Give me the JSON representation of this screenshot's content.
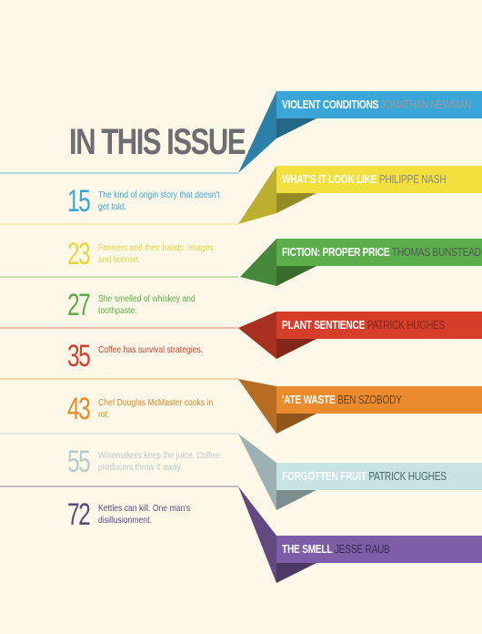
{
  "title": "IN THIS ISSUE",
  "entries": [
    {
      "num": "15",
      "desc": "The kind of origin story that doesn't get told.",
      "color": "#3aa6d8"
    },
    {
      "num": "23",
      "desc": "Farmers and their hands. Images and license.",
      "color": "#e8d63a"
    },
    {
      "num": "27",
      "desc": "She smelled of whiskey and toothpaste.",
      "color": "#5aaf4a"
    },
    {
      "num": "35",
      "desc": "Coffee has survival strategies.",
      "color": "#d73e2a"
    },
    {
      "num": "43",
      "desc": "Chef Douglas McMaster cooks in rot.",
      "color": "#e98a2c"
    },
    {
      "num": "55",
      "desc": "Winemakers keep the juice. Coffee producers throw it away.",
      "color": "#b9cbcc"
    },
    {
      "num": "72",
      "desc": "Kettles can kill. One man's disillusionment.",
      "color": "#5e4782"
    }
  ],
  "ribbons": [
    {
      "title": "VIOLENT CONDITIONS",
      "author": "JONATHAN NEWMAN",
      "color": "#3aa6d8",
      "author_color": "#9a9a9a"
    },
    {
      "title": "WHAT'S IT LOOK LIKE",
      "author": "PHILIPPE NASH",
      "color": "#f1e03d",
      "author_color": "#8a8a8a"
    },
    {
      "title": "FICTION: PROPER PRICE",
      "author": "THOMAS BUNSTEAD",
      "color": "#5aaf4a",
      "author_color": "#555555"
    },
    {
      "title": "PLANT SENTIENCE",
      "author": "PATRICK HUGHES",
      "color": "#d73e2a",
      "author_color": "#7a2a1c"
    },
    {
      "title": "'ATE WASTE",
      "author": "BEN SZOBODY",
      "color": "#e98a2c",
      "author_color": "#6a4420"
    },
    {
      "title": "FORGOTTEN FRUIT",
      "author": "PATRICK HUGHES",
      "color": "#c8e3e3",
      "author_color": "#4a6a6a"
    },
    {
      "title": "THE SMELL",
      "author": "JESSE RAUB",
      "color": "#7d5ea6",
      "author_color": "#3a2d52"
    }
  ]
}
